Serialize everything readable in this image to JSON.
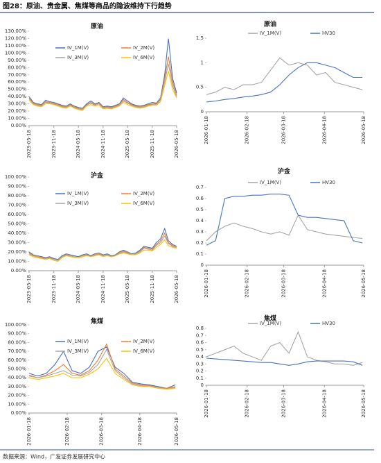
{
  "title": "图28：原油、贵金属、焦煤等商品的隐波维持下行趋势",
  "source": "数据来源：Wind，广发证券发展研究中心",
  "chart_data": [
    {
      "type": "line",
      "title": "原油",
      "legend": "top-left",
      "x": [
        "2023-05-18",
        "2023-06-18",
        "2023-07-18",
        "2023-08-18",
        "2023-09-18",
        "2023-10-18",
        "2023-11-18",
        "2023-12-18",
        "2024-01-18",
        "2024-02-18",
        "2024-03-18",
        "2024-04-18",
        "2024-05-18",
        "2024-06-18",
        "2024-07-18",
        "2024-08-18",
        "2024-09-18",
        "2024-10-18",
        "2024-11-18",
        "2024-12-18",
        "2025-01-18",
        "2025-02-18",
        "2025-03-18",
        "2025-04-18",
        "2025-05-18",
        "2025-06-18",
        "2025-07-18",
        "2025-08-18",
        "2025-09-18",
        "2025-10-18",
        "2025-11-18",
        "2025-12-18",
        "2026-01-18",
        "2026-02-18",
        "2026-03-18",
        "2026-04-18",
        "2026-05-18"
      ],
      "xlim": [
        "2023-05-18",
        "2026-05-18"
      ],
      "xticks": [
        "2023-05-18",
        "2023-11-18",
        "2024-05-18",
        "2024-11-18",
        "2025-05-18",
        "2025-11-18",
        "2026-05-18"
      ],
      "ylim": [
        0,
        130
      ],
      "yticks": [
        {
          "value": 0,
          "label": "0.00%"
        },
        {
          "value": 10,
          "label": "10.00%"
        },
        {
          "value": 20,
          "label": "20.00%"
        },
        {
          "value": 30,
          "label": "30.00%"
        },
        {
          "value": 40,
          "label": "40.00%"
        },
        {
          "value": 50,
          "label": "50.00%"
        },
        {
          "value": 60,
          "label": "60.00%"
        },
        {
          "value": 70,
          "label": "70.00%"
        },
        {
          "value": 80,
          "label": "80.00%"
        },
        {
          "value": 90,
          "label": "90.00%"
        },
        {
          "value": 100,
          "label": "100.00%"
        },
        {
          "value": 110,
          "label": "110.00%"
        },
        {
          "value": 120,
          "label": "120.00%"
        },
        {
          "value": 130,
          "label": "130.00%"
        }
      ],
      "series": [
        {
          "name": "IV_1M(V)",
          "color": "#4472c4",
          "values": [
            40,
            32,
            30,
            29,
            35,
            33,
            32,
            30,
            28,
            27,
            30,
            27,
            25,
            24,
            30,
            34,
            30,
            32,
            26,
            27,
            26,
            28,
            30,
            38,
            34,
            30,
            28,
            27,
            28,
            30,
            32,
            31,
            38,
            70,
            120,
            65,
            45
          ]
        },
        {
          "name": "IV_2M(V)",
          "color": "#ed7d31",
          "values": [
            38,
            31,
            29,
            28,
            33,
            32,
            31,
            29,
            27,
            26,
            29,
            26,
            24,
            23,
            29,
            32,
            29,
            31,
            25,
            26,
            25,
            27,
            29,
            36,
            32,
            29,
            27,
            26,
            27,
            29,
            30,
            30,
            36,
            65,
            95,
            60,
            42
          ]
        },
        {
          "name": "IV_3M(V)",
          "color": "#a5a5a5",
          "values": [
            37,
            30,
            28,
            27,
            32,
            31,
            30,
            28,
            26,
            25,
            28,
            25,
            23,
            22,
            28,
            31,
            28,
            30,
            24,
            25,
            24,
            26,
            28,
            34,
            31,
            28,
            26,
            25,
            26,
            28,
            29,
            29,
            35,
            60,
            85,
            55,
            40
          ]
        },
        {
          "name": "IV_6M(V)",
          "color": "#ffc000",
          "values": [
            35,
            29,
            27,
            26,
            30,
            30,
            29,
            27,
            25,
            24,
            27,
            24,
            22,
            21,
            27,
            29,
            27,
            28,
            23,
            24,
            23,
            25,
            27,
            32,
            29,
            27,
            25,
            24,
            25,
            27,
            28,
            28,
            33,
            55,
            75,
            50,
            38
          ]
        }
      ]
    },
    {
      "type": "line",
      "title": "原油",
      "legend": "top",
      "x": [
        "2026-01-18",
        "2026-01-25",
        "2026-02-01",
        "2026-02-08",
        "2026-02-15",
        "2026-02-22",
        "2026-03-01",
        "2026-03-08",
        "2026-03-15",
        "2026-03-22",
        "2026-03-29",
        "2026-04-05",
        "2026-04-12",
        "2026-04-19",
        "2026-04-26",
        "2026-05-03",
        "2026-05-10",
        "2026-05-17"
      ],
      "xlim": [
        "2026-01-18",
        "2026-05-18"
      ],
      "xticks": [
        "2026-01-18",
        "2026-02-18",
        "2026-03-18",
        "2026-04-18",
        "2026-05-18"
      ],
      "ylim": [
        0,
        1.5
      ],
      "yticks": [
        0,
        0.5,
        1,
        1.5
      ],
      "series": [
        {
          "name": "IV_1M(V)",
          "color": "#a5a5a5",
          "values": [
            0.35,
            0.4,
            0.5,
            0.45,
            0.55,
            0.55,
            0.6,
            0.85,
            1.1,
            0.95,
            1.0,
            0.95,
            0.75,
            0.8,
            0.6,
            0.55,
            0.5,
            0.45
          ]
        },
        {
          "name": "HV30",
          "color": "#4472c4",
          "values": [
            0.2,
            0.22,
            0.25,
            0.27,
            0.3,
            0.32,
            0.35,
            0.4,
            0.55,
            0.75,
            0.9,
            1.0,
            1.0,
            0.95,
            0.9,
            0.8,
            0.7,
            0.7
          ]
        }
      ]
    },
    {
      "type": "line",
      "title": "沪金",
      "legend": "top-left",
      "x": [
        "2023-05-18",
        "2023-06-18",
        "2023-07-18",
        "2023-08-18",
        "2023-09-18",
        "2023-10-18",
        "2023-11-18",
        "2023-12-18",
        "2024-01-18",
        "2024-02-18",
        "2024-03-18",
        "2024-04-18",
        "2024-05-18",
        "2024-06-18",
        "2024-07-18",
        "2024-08-18",
        "2024-09-18",
        "2024-10-18",
        "2024-11-18",
        "2024-12-18",
        "2025-01-18",
        "2025-02-18",
        "2025-03-18",
        "2025-04-18",
        "2025-05-18",
        "2025-06-18",
        "2025-07-18",
        "2025-08-18",
        "2025-09-18",
        "2025-10-18",
        "2025-11-18",
        "2025-12-18",
        "2026-01-18",
        "2026-02-18",
        "2026-03-18",
        "2026-04-18",
        "2026-05-18"
      ],
      "xlim": [
        "2023-05-18",
        "2026-05-18"
      ],
      "xticks": [
        "2023-05-18",
        "2023-11-18",
        "2024-05-18",
        "2024-11-18",
        "2025-05-18",
        "2025-11-18",
        "2026-05-18"
      ],
      "ylim": [
        0,
        100
      ],
      "yticks": [
        {
          "value": 0,
          "label": "0.00%"
        },
        {
          "value": 10,
          "label": "10.00%"
        },
        {
          "value": 20,
          "label": "20.00%"
        },
        {
          "value": 30,
          "label": "30.00%"
        },
        {
          "value": 40,
          "label": "40.00%"
        },
        {
          "value": 50,
          "label": "50.00%"
        },
        {
          "value": 60,
          "label": "60.00%"
        },
        {
          "value": 70,
          "label": "70.00%"
        },
        {
          "value": 80,
          "label": "80.00%"
        },
        {
          "value": 90,
          "label": "90.00%"
        },
        {
          "value": 100,
          "label": "100.00%"
        }
      ],
      "series": [
        {
          "name": "IV_1M(V)",
          "color": "#4472c4",
          "values": [
            20,
            17,
            16,
            15,
            14,
            15,
            13,
            12,
            16,
            18,
            17,
            16,
            15,
            17,
            18,
            16,
            18,
            19,
            17,
            18,
            16,
            17,
            20,
            22,
            20,
            18,
            19,
            22,
            26,
            25,
            24,
            30,
            34,
            45,
            32,
            28,
            26
          ]
        },
        {
          "name": "IV_2M(V)",
          "color": "#ed7d31",
          "values": [
            19,
            16,
            15,
            14,
            13,
            14,
            12,
            11,
            15,
            17,
            16,
            15,
            14,
            16,
            17,
            15,
            17,
            18,
            16,
            17,
            15,
            16,
            19,
            21,
            19,
            17,
            18,
            21,
            25,
            24,
            23,
            28,
            32,
            40,
            30,
            27,
            25
          ]
        },
        {
          "name": "IV_3M(V)",
          "color": "#a5a5a5",
          "values": [
            18,
            15,
            14,
            13,
            13,
            13,
            12,
            11,
            15,
            16,
            16,
            15,
            14,
            15,
            17,
            15,
            16,
            17,
            16,
            17,
            15,
            16,
            18,
            20,
            18,
            17,
            18,
            20,
            24,
            23,
            22,
            27,
            30,
            37,
            29,
            26,
            24
          ]
        },
        {
          "name": "IV_6M(V)",
          "color": "#ffc000",
          "values": [
            17,
            15,
            14,
            13,
            12,
            13,
            11,
            10,
            14,
            16,
            15,
            14,
            14,
            15,
            16,
            15,
            16,
            17,
            15,
            16,
            15,
            16,
            18,
            19,
            18,
            17,
            17,
            19,
            22,
            22,
            21,
            25,
            28,
            33,
            27,
            25,
            24
          ]
        }
      ]
    },
    {
      "type": "line",
      "title": "沪金",
      "legend": "top",
      "x": [
        "2026-01-18",
        "2026-01-25",
        "2026-02-01",
        "2026-02-08",
        "2026-02-15",
        "2026-02-22",
        "2026-03-01",
        "2026-03-08",
        "2026-03-15",
        "2026-03-22",
        "2026-03-29",
        "2026-04-05",
        "2026-04-12",
        "2026-04-19",
        "2026-04-26",
        "2026-05-03",
        "2026-05-10",
        "2026-05-17"
      ],
      "xlim": [
        "2026-01-18",
        "2026-05-18"
      ],
      "xticks": [
        "2026-01-18",
        "2026-02-18",
        "2026-03-18",
        "2026-04-18",
        "2026-05-18"
      ],
      "ylim": [
        0,
        0.7
      ],
      "yticks": [
        0,
        0.1,
        0.2,
        0.3,
        0.4,
        0.5,
        0.6,
        0.7
      ],
      "series": [
        {
          "name": "IV_1M(V)",
          "color": "#a5a5a5",
          "values": [
            0.22,
            0.3,
            0.35,
            0.38,
            0.35,
            0.33,
            0.3,
            0.28,
            0.3,
            0.27,
            0.45,
            0.32,
            0.3,
            0.28,
            0.27,
            0.26,
            0.25,
            0.24
          ]
        },
        {
          "name": "HV30",
          "color": "#4472c4",
          "values": [
            0.18,
            0.22,
            0.6,
            0.62,
            0.62,
            0.63,
            0.63,
            0.64,
            0.64,
            0.63,
            0.45,
            0.43,
            0.43,
            0.42,
            0.41,
            0.4,
            0.22,
            0.2
          ]
        }
      ]
    },
    {
      "type": "line",
      "title": "焦煤",
      "legend": "top-left",
      "x": [
        "2026-01-18",
        "2026-01-25",
        "2026-02-01",
        "2026-02-08",
        "2026-02-15",
        "2026-02-22",
        "2026-03-01",
        "2026-03-08",
        "2026-03-15",
        "2026-03-22",
        "2026-03-29",
        "2026-04-05",
        "2026-04-12",
        "2026-04-19",
        "2026-04-26",
        "2026-05-03",
        "2026-05-10",
        "2026-05-17"
      ],
      "xlim": [
        "2026-01-18",
        "2026-05-18"
      ],
      "xticks": [
        "2026-01-18",
        "2026-02-18",
        "2026-03-18",
        "2026-04-18",
        "2026-05-18"
      ],
      "ylim": [
        0,
        100
      ],
      "yticks": [
        {
          "value": 0,
          "label": "0.00%"
        },
        {
          "value": 10,
          "label": "10.00%"
        },
        {
          "value": 20,
          "label": "20.00%"
        },
        {
          "value": 30,
          "label": "30.00%"
        },
        {
          "value": 40,
          "label": "40.00%"
        },
        {
          "value": 50,
          "label": "50.00%"
        },
        {
          "value": 60,
          "label": "60.00%"
        },
        {
          "value": 70,
          "label": "70.00%"
        },
        {
          "value": 80,
          "label": "80.00%"
        },
        {
          "value": 90,
          "label": "90.00%"
        },
        {
          "value": 100,
          "label": "100.00%"
        }
      ],
      "series": [
        {
          "name": "IV_1M(V)",
          "color": "#4472c4",
          "values": [
            45,
            42,
            45,
            55,
            70,
            48,
            45,
            52,
            70,
            75,
            52,
            45,
            35,
            33,
            32,
            30,
            28,
            32
          ]
        },
        {
          "name": "IV_2M(V)",
          "color": "#ed7d31",
          "values": [
            43,
            40,
            43,
            48,
            55,
            45,
            43,
            48,
            60,
            78,
            50,
            42,
            34,
            32,
            31,
            29,
            28,
            30
          ]
        },
        {
          "name": "IV_3M(V)",
          "color": "#a5a5a5",
          "values": [
            42,
            40,
            42,
            45,
            48,
            43,
            42,
            46,
            55,
            72,
            48,
            40,
            33,
            31,
            30,
            29,
            27,
            29
          ]
        },
        {
          "name": "IV_6M(V)",
          "color": "#ffc000",
          "values": [
            40,
            38,
            40,
            42,
            45,
            40,
            40,
            44,
            50,
            62,
            45,
            38,
            32,
            30,
            30,
            28,
            27,
            28
          ]
        }
      ]
    },
    {
      "type": "line",
      "title": "焦煤",
      "legend": "top",
      "x": [
        "2026-01-18",
        "2026-01-25",
        "2026-02-01",
        "2026-02-08",
        "2026-02-15",
        "2026-02-22",
        "2026-03-01",
        "2026-03-08",
        "2026-03-15",
        "2026-03-22",
        "2026-03-29",
        "2026-04-05",
        "2026-04-12",
        "2026-04-19",
        "2026-04-26",
        "2026-05-03",
        "2026-05-10",
        "2026-05-17"
      ],
      "xlim": [
        "2026-01-18",
        "2026-05-18"
      ],
      "xticks": [
        "2026-01-18",
        "2026-02-18",
        "2026-03-18",
        "2026-04-18",
        "2026-05-18"
      ],
      "ylim": [
        0,
        0.8
      ],
      "yticks": [
        0,
        0.1,
        0.2,
        0.3,
        0.4,
        0.5,
        0.6,
        0.7,
        0.8
      ],
      "series": [
        {
          "name": "IV_1M(V)",
          "color": "#a5a5a5",
          "values": [
            0.4,
            0.45,
            0.5,
            0.55,
            0.45,
            0.4,
            0.35,
            0.55,
            0.6,
            0.45,
            0.75,
            0.4,
            0.35,
            0.33,
            0.3,
            0.3,
            0.28,
            0.32
          ]
        },
        {
          "name": "HV30",
          "color": "#4472c4",
          "values": [
            0.38,
            0.37,
            0.36,
            0.35,
            0.34,
            0.33,
            0.32,
            0.32,
            0.3,
            0.28,
            0.3,
            0.33,
            0.34,
            0.34,
            0.34,
            0.34,
            0.33,
            0.28
          ]
        }
      ]
    }
  ]
}
